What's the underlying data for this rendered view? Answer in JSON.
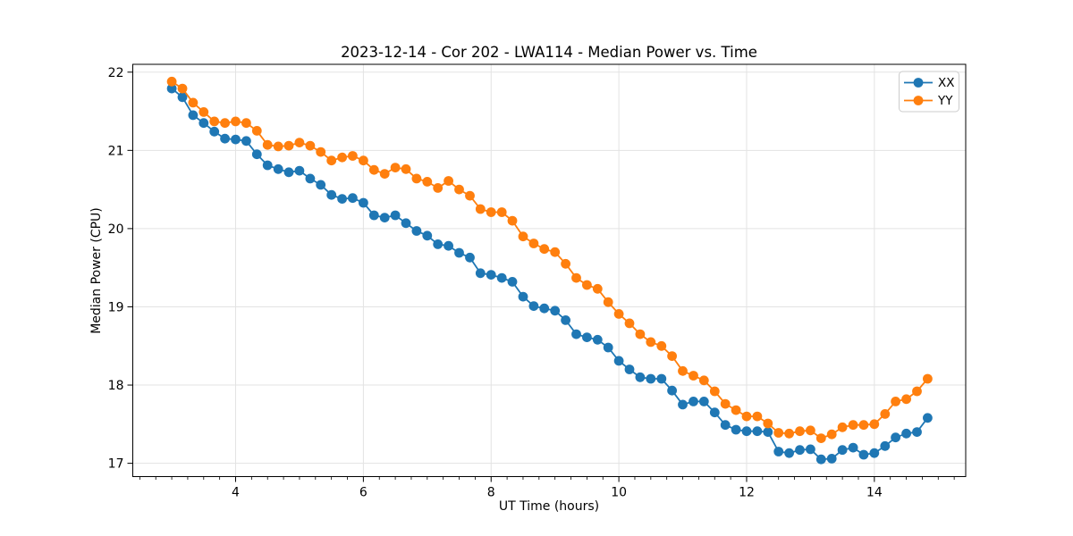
{
  "figure": {
    "background": "#ffffff"
  },
  "chart_data": {
    "type": "line",
    "title": "2023-12-14 - Cor 202 - LWA114 - Median Power vs. Time",
    "xlabel": "UT Time (hours)",
    "ylabel": "Median Power (CPU)",
    "xlim": [
      2.39,
      15.43
    ],
    "ylim": [
      16.83,
      22.1
    ],
    "x_major_ticks": [
      4,
      6,
      8,
      10,
      12,
      14
    ],
    "x_minor_tick_step": 0.25,
    "y_major_ticks": [
      17,
      18,
      19,
      20,
      21,
      22
    ],
    "grid": true,
    "grid_color": "#e3e3e3",
    "legend_position": "upper right",
    "x": [
      3.0,
      3.167,
      3.333,
      3.5,
      3.667,
      3.833,
      4.0,
      4.167,
      4.333,
      4.5,
      4.667,
      4.833,
      5.0,
      5.167,
      5.333,
      5.5,
      5.667,
      5.833,
      6.0,
      6.167,
      6.333,
      6.5,
      6.667,
      6.833,
      7.0,
      7.167,
      7.333,
      7.5,
      7.667,
      7.833,
      8.0,
      8.167,
      8.333,
      8.5,
      8.667,
      8.833,
      9.0,
      9.167,
      9.333,
      9.5,
      9.667,
      9.833,
      10.0,
      10.167,
      10.333,
      10.5,
      10.667,
      10.833,
      11.0,
      11.167,
      11.333,
      11.5,
      11.667,
      11.833,
      12.0,
      12.167,
      12.333,
      12.5,
      12.667,
      12.833,
      13.0,
      13.167,
      13.333,
      13.5,
      13.667,
      13.833,
      14.0,
      14.167,
      14.333,
      14.5,
      14.667,
      14.833
    ],
    "series": [
      {
        "name": "XX",
        "color": "#1f77b4",
        "values": [
          21.79,
          21.68,
          21.45,
          21.35,
          21.24,
          21.15,
          21.14,
          21.12,
          20.95,
          20.81,
          20.76,
          20.72,
          20.74,
          20.64,
          20.56,
          20.43,
          20.38,
          20.39,
          20.33,
          20.17,
          20.14,
          20.17,
          20.07,
          19.97,
          19.91,
          19.8,
          19.78,
          19.69,
          19.63,
          19.43,
          19.41,
          19.37,
          19.32,
          19.13,
          19.01,
          18.98,
          18.95,
          18.83,
          18.65,
          18.61,
          18.58,
          18.48,
          18.31,
          18.2,
          18.1,
          18.08,
          18.08,
          17.93,
          17.75,
          17.79,
          17.79,
          17.65,
          17.49,
          17.43,
          17.41,
          17.41,
          17.4,
          17.15,
          17.13,
          17.17,
          17.18,
          17.05,
          17.06,
          17.17,
          17.2,
          17.11,
          17.13,
          17.22,
          17.33,
          17.38,
          17.4,
          17.58
        ]
      },
      {
        "name": "YY",
        "color": "#ff7f0e",
        "values": [
          21.88,
          21.79,
          21.61,
          21.49,
          21.37,
          21.35,
          21.37,
          21.35,
          21.25,
          21.07,
          21.05,
          21.06,
          21.1,
          21.06,
          20.98,
          20.87,
          20.91,
          20.93,
          20.87,
          20.75,
          20.7,
          20.78,
          20.76,
          20.64,
          20.6,
          20.52,
          20.61,
          20.5,
          20.42,
          20.25,
          20.21,
          20.21,
          20.1,
          19.9,
          19.81,
          19.74,
          19.7,
          19.55,
          19.37,
          19.28,
          19.23,
          19.06,
          18.91,
          18.79,
          18.65,
          18.55,
          18.5,
          18.37,
          18.18,
          18.12,
          18.06,
          17.92,
          17.76,
          17.68,
          17.6,
          17.6,
          17.51,
          17.39,
          17.38,
          17.41,
          17.42,
          17.32,
          17.37,
          17.46,
          17.49,
          17.49,
          17.5,
          17.63,
          17.79,
          17.82,
          17.92,
          18.08
        ]
      }
    ]
  }
}
